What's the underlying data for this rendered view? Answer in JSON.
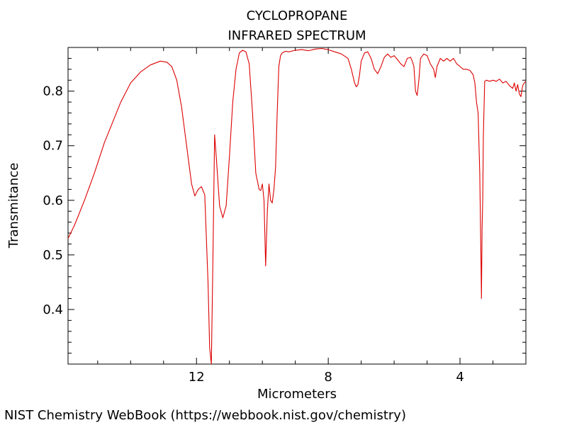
{
  "credit": "NIST Chemistry WebBook (https://webbook.nist.gov/chemistry)",
  "chart_data": {
    "type": "line",
    "title": "CYCLOPROPANE",
    "subtitle": "INFRARED SPECTRUM",
    "xlabel": "Micrometers",
    "ylabel": "Transmitance",
    "xlim": [
      15.9,
      2.0
    ],
    "ylim": [
      0.3,
      0.88
    ],
    "x_axis_reversed": true,
    "xticks": [
      12,
      8,
      4
    ],
    "yticks": [
      0.4,
      0.5,
      0.6,
      0.7,
      0.8
    ],
    "grid": false,
    "line_color": "#dd0000",
    "series": [
      {
        "x": [
          15.9,
          15.7,
          15.4,
          15.1,
          14.8,
          14.5,
          14.3,
          14.0,
          13.7,
          13.4,
          13.1,
          12.9,
          12.75,
          12.6,
          12.45,
          12.3,
          12.15,
          12.05,
          11.95,
          11.85,
          11.75,
          11.65,
          11.6,
          11.55,
          11.5,
          11.45,
          11.4,
          11.3,
          11.2,
          11.1,
          11.0,
          10.9,
          10.8,
          10.7,
          10.6,
          10.5,
          10.4,
          10.3,
          10.2,
          10.1,
          10.05,
          10.0,
          9.95,
          9.9,
          9.85,
          9.8,
          9.75,
          9.7,
          9.65,
          9.6,
          9.55,
          9.5,
          9.45,
          9.4,
          9.3,
          9.2,
          9.0,
          8.8,
          8.6,
          8.4,
          8.2,
          8.0,
          7.8,
          7.6,
          7.4,
          7.3,
          7.2,
          7.15,
          7.1,
          7.05,
          7.0,
          6.9,
          6.8,
          6.7,
          6.6,
          6.5,
          6.4,
          6.3,
          6.2,
          6.1,
          6.0,
          5.9,
          5.8,
          5.7,
          5.6,
          5.5,
          5.45,
          5.4,
          5.35,
          5.3,
          5.25,
          5.2,
          5.1,
          5.0,
          4.9,
          4.8,
          4.75,
          4.7,
          4.6,
          4.5,
          4.4,
          4.3,
          4.2,
          4.1,
          4.0,
          3.9,
          3.8,
          3.7,
          3.6,
          3.55,
          3.5,
          3.45,
          3.4,
          3.37,
          3.35,
          3.33,
          3.31,
          3.29,
          3.25,
          3.2,
          3.1,
          3.0,
          2.9,
          2.8,
          2.7,
          2.6,
          2.5,
          2.4,
          2.35,
          2.3,
          2.25,
          2.2,
          2.15,
          2.1,
          2.05,
          2.0
        ],
        "y": [
          0.53,
          0.555,
          0.6,
          0.65,
          0.705,
          0.75,
          0.78,
          0.815,
          0.835,
          0.848,
          0.855,
          0.853,
          0.845,
          0.82,
          0.77,
          0.7,
          0.63,
          0.608,
          0.62,
          0.625,
          0.61,
          0.45,
          0.33,
          0.3,
          0.5,
          0.72,
          0.68,
          0.59,
          0.568,
          0.59,
          0.68,
          0.78,
          0.84,
          0.87,
          0.875,
          0.872,
          0.85,
          0.76,
          0.65,
          0.62,
          0.618,
          0.63,
          0.6,
          0.48,
          0.58,
          0.63,
          0.6,
          0.595,
          0.62,
          0.66,
          0.76,
          0.845,
          0.865,
          0.87,
          0.873,
          0.872,
          0.875,
          0.876,
          0.874,
          0.877,
          0.878,
          0.876,
          0.872,
          0.868,
          0.86,
          0.84,
          0.815,
          0.808,
          0.812,
          0.83,
          0.855,
          0.87,
          0.872,
          0.86,
          0.84,
          0.832,
          0.845,
          0.862,
          0.868,
          0.862,
          0.865,
          0.858,
          0.85,
          0.845,
          0.86,
          0.862,
          0.855,
          0.845,
          0.8,
          0.792,
          0.82,
          0.86,
          0.868,
          0.865,
          0.85,
          0.84,
          0.825,
          0.845,
          0.86,
          0.855,
          0.86,
          0.855,
          0.86,
          0.85,
          0.845,
          0.84,
          0.84,
          0.838,
          0.83,
          0.815,
          0.78,
          0.76,
          0.65,
          0.52,
          0.42,
          0.55,
          0.6,
          0.72,
          0.818,
          0.82,
          0.818,
          0.82,
          0.818,
          0.822,
          0.815,
          0.818,
          0.81,
          0.805,
          0.815,
          0.8,
          0.812,
          0.795,
          0.79,
          0.81,
          0.815,
          0.818
        ]
      }
    ]
  }
}
